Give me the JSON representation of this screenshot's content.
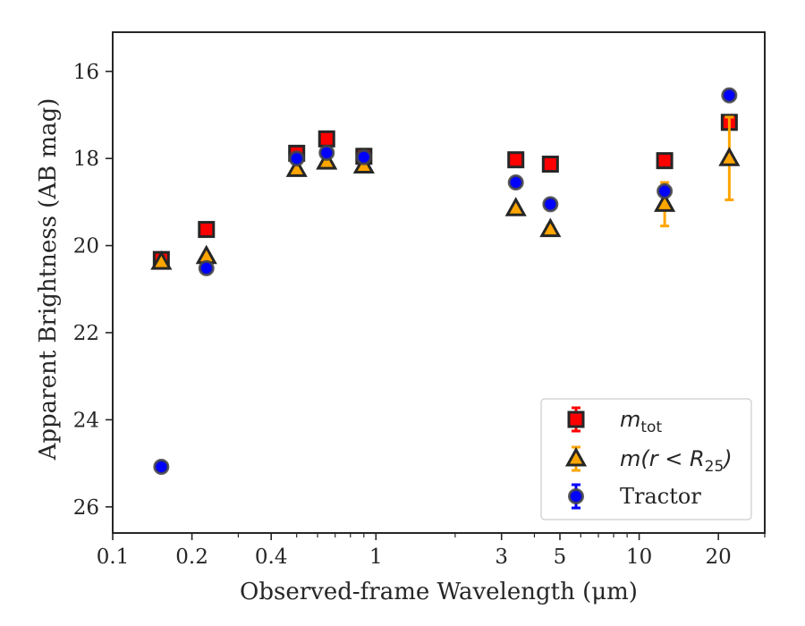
{
  "chart_data": {
    "type": "scatter",
    "title": "",
    "xlabel": "Observed-frame Wavelength (μm)",
    "ylabel": "Apparent Brightness (AB mag)",
    "xscale": "log",
    "xlim": [
      0.1,
      30
    ],
    "ylim": [
      26.6,
      15.1
    ],
    "y_inverted": true,
    "xticks": [
      {
        "value": 0.1,
        "label": "0.1"
      },
      {
        "value": 0.2,
        "label": "0.2"
      },
      {
        "value": 0.4,
        "label": "0.4"
      },
      {
        "value": 1,
        "label": "1"
      },
      {
        "value": 3,
        "label": "3"
      },
      {
        "value": 5,
        "label": "5"
      },
      {
        "value": 10,
        "label": "10"
      },
      {
        "value": 20,
        "label": "20"
      }
    ],
    "yticks": [
      {
        "value": 16,
        "label": "16"
      },
      {
        "value": 18,
        "label": "18"
      },
      {
        "value": 20,
        "label": "20"
      },
      {
        "value": 22,
        "label": "22"
      },
      {
        "value": 24,
        "label": "24"
      },
      {
        "value": 26,
        "label": "26"
      }
    ],
    "grid": false,
    "legend_position": "bottom-right",
    "series": [
      {
        "name": "m_tot",
        "name_main": "m",
        "name_sub": "tot",
        "marker": "square",
        "fill": "#ff0000",
        "edge": "#262626",
        "errcolor": "#ff0000",
        "points": [
          {
            "x": 0.153,
            "y": 20.32,
            "err": 0.08
          },
          {
            "x": 0.227,
            "y": 19.63,
            "err": 0.05
          },
          {
            "x": 0.5,
            "y": 17.88,
            "err": 0.03
          },
          {
            "x": 0.65,
            "y": 17.55,
            "err": 0.03
          },
          {
            "x": 0.9,
            "y": 17.95,
            "err": 0.03
          },
          {
            "x": 3.4,
            "y": 18.03,
            "err": 0.03
          },
          {
            "x": 4.6,
            "y": 18.13,
            "err": 0.03
          },
          {
            "x": 12.5,
            "y": 18.05,
            "err": 0.05
          },
          {
            "x": 22.0,
            "y": 17.17,
            "err": 0.12
          }
        ]
      },
      {
        "name": "m(r < R_25)",
        "name_main": "m(r < R",
        "name_sub": "25",
        "name_end": ")",
        "marker": "triangle",
        "fill": "#ffa500",
        "edge": "#262626",
        "errcolor": "#ffa500",
        "points": [
          {
            "x": 0.153,
            "y": 20.38,
            "err": 0.08
          },
          {
            "x": 0.227,
            "y": 20.25,
            "err": 0.07
          },
          {
            "x": 0.5,
            "y": 18.25,
            "err": 0.04
          },
          {
            "x": 0.65,
            "y": 18.08,
            "err": 0.04
          },
          {
            "x": 0.9,
            "y": 18.17,
            "err": 0.04
          },
          {
            "x": 3.4,
            "y": 19.15,
            "err": 0.06
          },
          {
            "x": 4.6,
            "y": 19.63,
            "err": 0.08
          },
          {
            "x": 12.5,
            "y": 19.05,
            "err": 0.5
          },
          {
            "x": 22.0,
            "y": 18.0,
            "err": 0.95
          }
        ]
      },
      {
        "name": "Tractor",
        "marker": "circle",
        "fill": "#0000ff",
        "edge": "#444444",
        "errcolor": "#0000ff",
        "points": [
          {
            "x": 0.153,
            "y": 25.08,
            "err": 0.05
          },
          {
            "x": 0.227,
            "y": 20.52,
            "err": 0.05
          },
          {
            "x": 0.5,
            "y": 18.0,
            "err": 0.03
          },
          {
            "x": 0.65,
            "y": 17.87,
            "err": 0.03
          },
          {
            "x": 0.9,
            "y": 17.97,
            "err": 0.03
          },
          {
            "x": 3.4,
            "y": 18.55,
            "err": 0.03
          },
          {
            "x": 4.6,
            "y": 19.05,
            "err": 0.03
          },
          {
            "x": 12.5,
            "y": 18.75,
            "err": 0.06
          },
          {
            "x": 22.0,
            "y": 16.55,
            "err": 0.04
          }
        ]
      }
    ]
  }
}
